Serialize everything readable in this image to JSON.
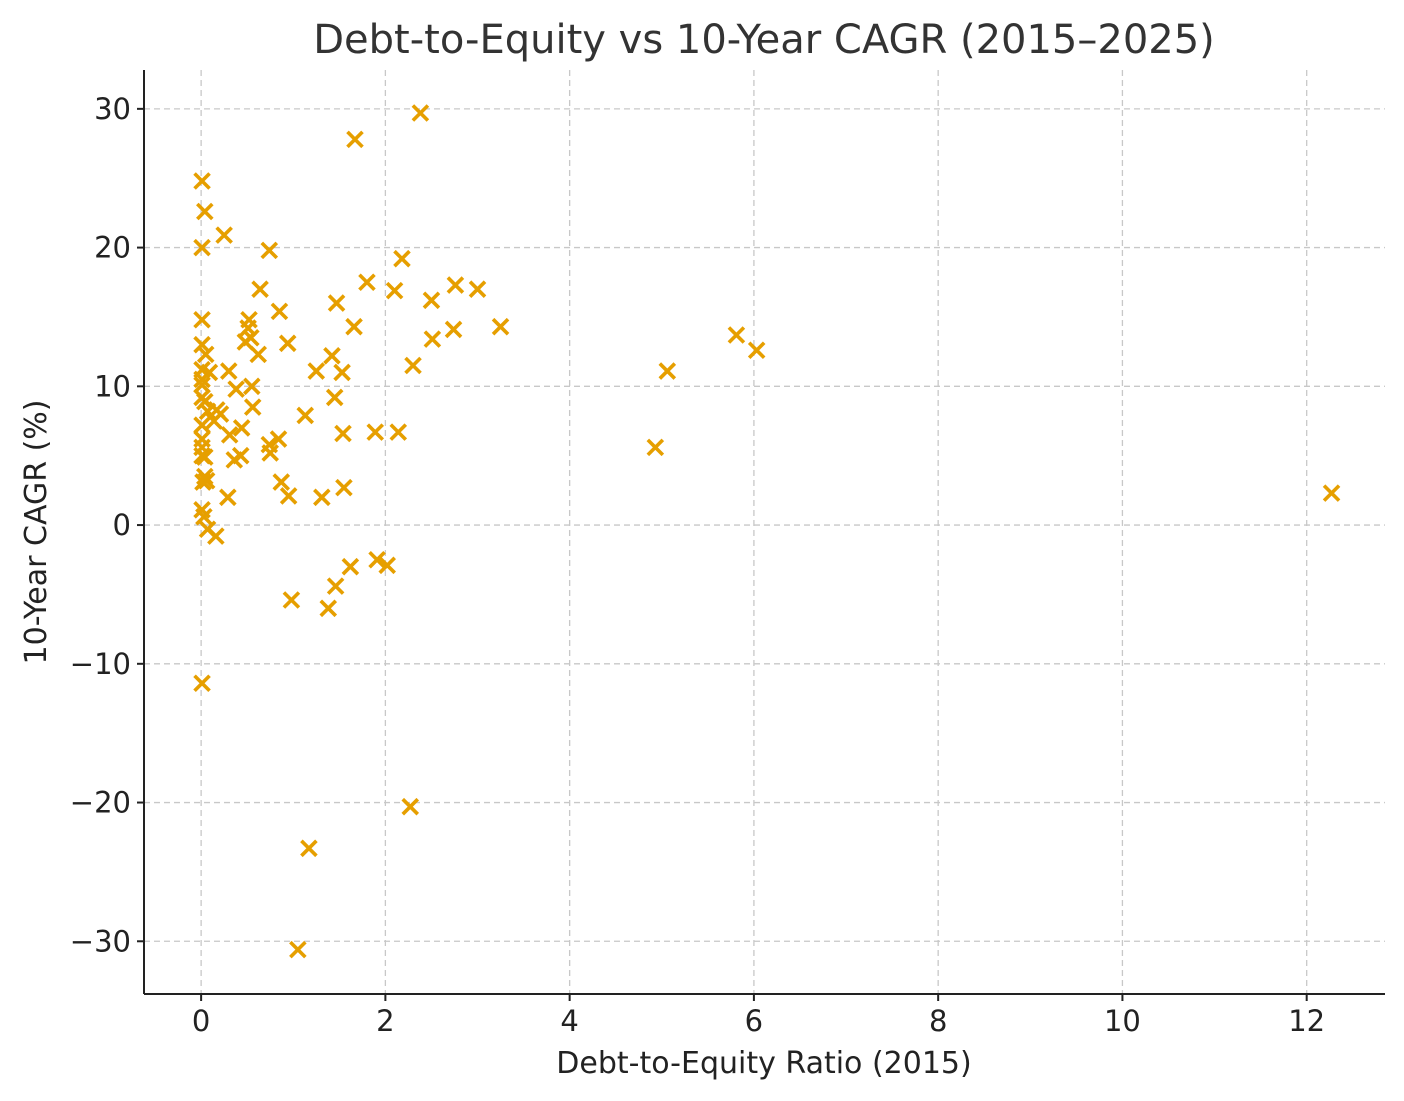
{
  "chart_data": {
    "type": "scatter",
    "title": "Debt-to-Equity vs 10-Year CAGR (2015–2025)",
    "xlabel": "Debt-to-Equity Ratio (2015)",
    "ylabel": "10-Year CAGR (%)",
    "xlim": [
      -0.62,
      12.85
    ],
    "ylim": [
      -33.8,
      32.8
    ],
    "xticks": [
      0,
      2,
      4,
      6,
      8,
      10,
      12
    ],
    "yticks": [
      -30,
      -20,
      -10,
      0,
      10,
      20,
      30
    ],
    "xtick_labels": [
      "0",
      "2",
      "4",
      "6",
      "8",
      "10",
      "12"
    ],
    "ytick_labels": [
      "−30",
      "−20",
      "−10",
      "0",
      "10",
      "20",
      "30"
    ],
    "grid": true,
    "marker": "x",
    "color": "#E69F00",
    "points": [
      [
        0.01,
        24.8
      ],
      [
        0.04,
        22.6
      ],
      [
        0.01,
        20.0
      ],
      [
        0.25,
        20.9
      ],
      [
        0.74,
        19.8
      ],
      [
        0.01,
        14.8
      ],
      [
        0.01,
        13.0
      ],
      [
        0.05,
        12.3
      ],
      [
        0.01,
        11.2
      ],
      [
        0.09,
        11.0
      ],
      [
        0.01,
        10.5
      ],
      [
        0.01,
        10.1
      ],
      [
        0.01,
        9.2
      ],
      [
        0.04,
        8.9
      ],
      [
        0.07,
        8.2
      ],
      [
        0.17,
        8.3
      ],
      [
        0.21,
        8.0
      ],
      [
        0.14,
        7.5
      ],
      [
        0.01,
        7.2
      ],
      [
        0.01,
        6.2
      ],
      [
        0.01,
        5.6
      ],
      [
        0.01,
        5.0
      ],
      [
        0.04,
        4.9
      ],
      [
        0.04,
        3.5
      ],
      [
        0.06,
        3.2
      ],
      [
        0.02,
        3.1
      ],
      [
        0.01,
        1.1
      ],
      [
        0.03,
        0.6
      ],
      [
        0.07,
        -0.3
      ],
      [
        0.16,
        -0.8
      ],
      [
        0.01,
        -11.4
      ],
      [
        0.3,
        11.1
      ],
      [
        0.38,
        9.8
      ],
      [
        0.31,
        6.5
      ],
      [
        0.36,
        4.7
      ],
      [
        0.43,
        5.0
      ],
      [
        0.29,
        2.0
      ],
      [
        0.44,
        7.0
      ],
      [
        0.48,
        13.2
      ],
      [
        0.51,
        14.2
      ],
      [
        0.52,
        14.8
      ],
      [
        0.54,
        13.5
      ],
      [
        0.55,
        10.0
      ],
      [
        0.56,
        8.5
      ],
      [
        0.62,
        12.3
      ],
      [
        0.64,
        17.0
      ],
      [
        0.74,
        5.8
      ],
      [
        0.75,
        5.2
      ],
      [
        0.84,
        6.2
      ],
      [
        0.85,
        15.4
      ],
      [
        0.87,
        3.1
      ],
      [
        0.94,
        13.1
      ],
      [
        0.95,
        2.1
      ],
      [
        0.98,
        -5.4
      ],
      [
        1.05,
        -30.6
      ],
      [
        1.13,
        7.9
      ],
      [
        1.17,
        -23.3
      ],
      [
        1.25,
        11.1
      ],
      [
        1.31,
        2.0
      ],
      [
        1.38,
        -6.0
      ],
      [
        1.42,
        12.2
      ],
      [
        1.45,
        9.2
      ],
      [
        1.46,
        -4.4
      ],
      [
        1.47,
        16.0
      ],
      [
        1.53,
        11.0
      ],
      [
        1.54,
        6.6
      ],
      [
        1.55,
        2.7
      ],
      [
        1.62,
        -3.0
      ],
      [
        1.66,
        14.3
      ],
      [
        1.67,
        27.8
      ],
      [
        1.8,
        17.5
      ],
      [
        1.89,
        6.7
      ],
      [
        1.91,
        -2.5
      ],
      [
        2.02,
        -2.9
      ],
      [
        2.1,
        16.9
      ],
      [
        2.14,
        6.7
      ],
      [
        2.18,
        19.2
      ],
      [
        2.27,
        -20.3
      ],
      [
        2.3,
        11.5
      ],
      [
        2.38,
        29.7
      ],
      [
        2.5,
        16.2
      ],
      [
        2.51,
        13.4
      ],
      [
        2.74,
        14.1
      ],
      [
        2.76,
        17.3
      ],
      [
        3.0,
        17.0
      ],
      [
        3.25,
        14.3
      ],
      [
        4.93,
        5.6
      ],
      [
        5.06,
        11.1
      ],
      [
        5.81,
        13.7
      ],
      [
        6.03,
        12.6
      ],
      [
        12.27,
        2.3
      ]
    ]
  }
}
